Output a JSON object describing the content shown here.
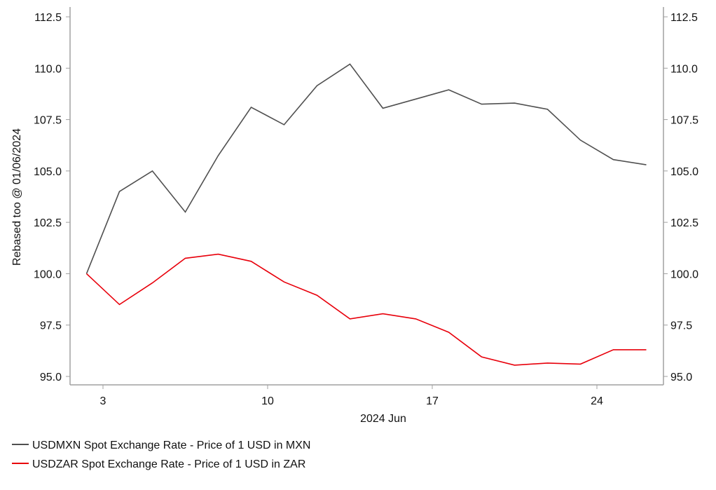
{
  "chart_data": {
    "type": "line",
    "title": "",
    "xlabel": "2024 Jun",
    "ylabel": "Rebased too @ 01/06/2024",
    "xlim": [
      1.6,
      26.83
    ],
    "ylim": [
      95.0,
      112.5
    ],
    "x_ticks": [
      3,
      10,
      17,
      24
    ],
    "y_ticks": [
      "95.0",
      "97.5",
      "100.0",
      "102.5",
      "105.0",
      "107.5",
      "110.0",
      "112.5"
    ],
    "grid": false,
    "legend_position": "bottom-left",
    "x": [
      2.3,
      3.7,
      5.1,
      6.5,
      7.9,
      9.3,
      10.7,
      12.1,
      13.5,
      14.9,
      16.3,
      17.7,
      19.1,
      20.5,
      21.9,
      23.3,
      24.7,
      26.1
    ],
    "series": [
      {
        "name": "USDMXN Spot Exchange Rate - Price of 1 USD in MXN",
        "color": "#505050",
        "values": [
          100.0,
          104.0,
          105.0,
          103.0,
          105.75,
          108.1,
          107.25,
          109.15,
          110.2,
          108.05,
          108.5,
          108.95,
          108.25,
          108.3,
          108.0,
          106.5,
          105.55,
          105.3
        ]
      },
      {
        "name": "USDZAR Spot Exchange Rate - Price of 1 USD in ZAR",
        "color": "#e8000b",
        "values": [
          100.0,
          98.5,
          99.55,
          100.75,
          100.95,
          100.6,
          99.6,
          98.95,
          97.8,
          98.05,
          97.8,
          97.15,
          95.95,
          95.55,
          95.65,
          95.6,
          96.3,
          96.3
        ]
      }
    ]
  }
}
